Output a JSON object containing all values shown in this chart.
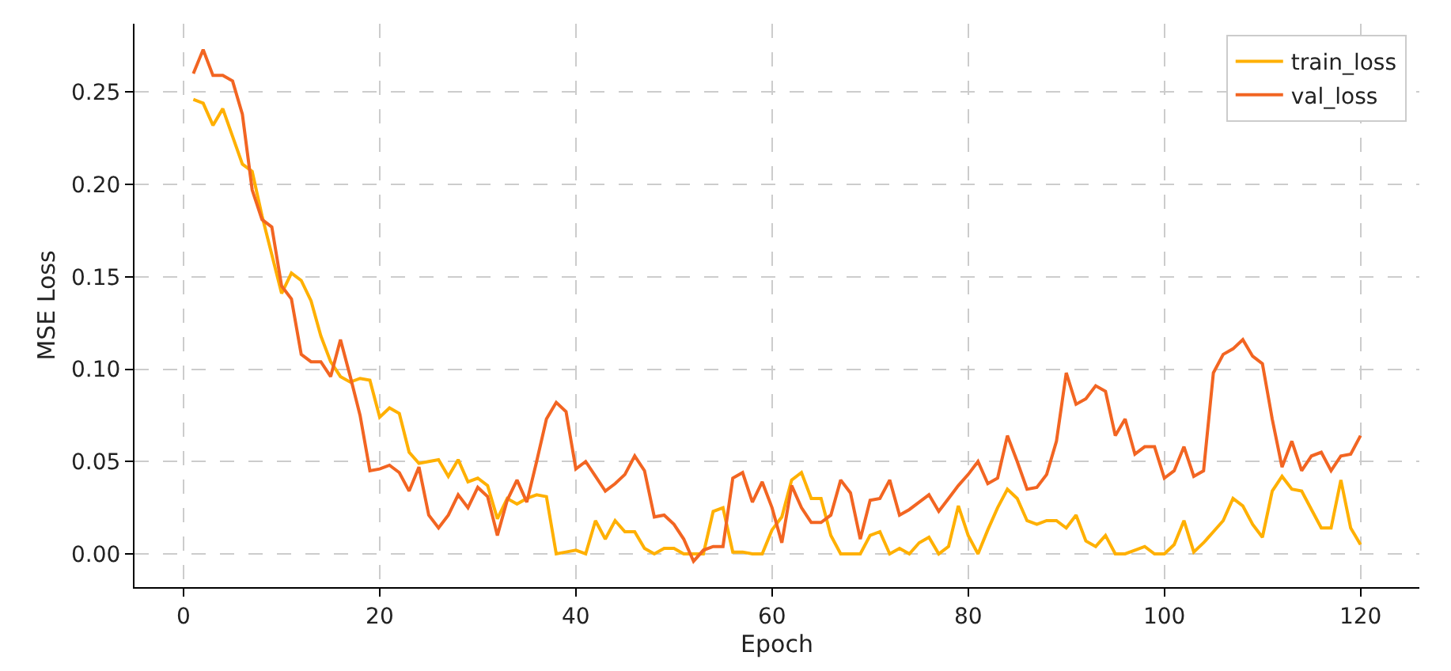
{
  "chart_data": {
    "type": "line",
    "xlabel": "Epoch",
    "ylabel": "MSE Loss",
    "x": [
      1,
      2,
      3,
      4,
      5,
      6,
      7,
      8,
      9,
      10,
      11,
      12,
      13,
      14,
      15,
      16,
      17,
      18,
      19,
      20,
      21,
      22,
      23,
      24,
      25,
      26,
      27,
      28,
      29,
      30,
      31,
      32,
      33,
      34,
      35,
      36,
      37,
      38,
      39,
      40,
      41,
      42,
      43,
      44,
      45,
      46,
      47,
      48,
      49,
      50,
      51,
      52,
      53,
      54,
      55,
      56,
      57,
      58,
      59,
      60,
      61,
      62,
      63,
      64,
      65,
      66,
      67,
      68,
      69,
      70,
      71,
      72,
      73,
      74,
      75,
      76,
      77,
      78,
      79,
      80,
      81,
      82,
      83,
      84,
      85,
      86,
      87,
      88,
      89,
      90,
      91,
      92,
      93,
      94,
      95,
      96,
      97,
      98,
      99,
      100,
      101,
      102,
      103,
      104,
      105,
      106,
      107,
      108,
      109,
      110,
      111,
      112,
      113,
      114,
      115,
      116,
      117,
      118,
      119,
      120
    ],
    "series": [
      {
        "name": "train_loss",
        "color": "#ffb000",
        "values": [
          0.246,
          0.244,
          0.232,
          0.241,
          0.226,
          0.211,
          0.207,
          0.183,
          0.162,
          0.141,
          0.152,
          0.148,
          0.137,
          0.118,
          0.104,
          0.096,
          0.093,
          0.095,
          0.094,
          0.074,
          0.079,
          0.076,
          0.055,
          0.049,
          0.05,
          0.051,
          0.042,
          0.051,
          0.039,
          0.041,
          0.037,
          0.019,
          0.03,
          0.027,
          0.03,
          0.032,
          0.031,
          0.0,
          0.001,
          0.002,
          0.0,
          0.018,
          0.008,
          0.018,
          0.012,
          0.012,
          0.003,
          0.0,
          0.003,
          0.003,
          0.0,
          0.0,
          0.0,
          0.023,
          0.025,
          0.001,
          0.001,
          0.0,
          0.0,
          0.013,
          0.02,
          0.04,
          0.044,
          0.03,
          0.03,
          0.01,
          0.0,
          0.0,
          0.0,
          0.01,
          0.012,
          0.0,
          0.003,
          0.0,
          0.006,
          0.009,
          0.0,
          0.004,
          0.026,
          0.01,
          0.0,
          0.013,
          0.025,
          0.035,
          0.03,
          0.018,
          0.016,
          0.018,
          0.018,
          0.014,
          0.021,
          0.007,
          0.004,
          0.01,
          0.0,
          0.0,
          0.002,
          0.004,
          0.0,
          0.0,
          0.005,
          0.018,
          0.001,
          0.006,
          0.012,
          0.018,
          0.03,
          0.026,
          0.016,
          0.009,
          0.034,
          0.042,
          0.035,
          0.034,
          0.024,
          0.014,
          0.014,
          0.04,
          0.014,
          0.005
        ]
      },
      {
        "name": "val_loss",
        "color": "#f26522",
        "values": [
          0.26,
          0.273,
          0.259,
          0.259,
          0.256,
          0.238,
          0.197,
          0.181,
          0.177,
          0.145,
          0.138,
          0.108,
          0.104,
          0.104,
          0.096,
          0.116,
          0.096,
          0.075,
          0.045,
          0.046,
          0.048,
          0.044,
          0.034,
          0.047,
          0.021,
          0.014,
          0.021,
          0.032,
          0.025,
          0.036,
          0.031,
          0.01,
          0.029,
          0.04,
          0.028,
          0.05,
          0.073,
          0.082,
          0.077,
          0.046,
          0.05,
          0.042,
          0.034,
          0.038,
          0.043,
          0.053,
          0.045,
          0.02,
          0.021,
          0.016,
          0.008,
          -0.004,
          0.002,
          0.004,
          0.004,
          0.041,
          0.044,
          0.028,
          0.039,
          0.025,
          0.006,
          0.037,
          0.025,
          0.017,
          0.017,
          0.021,
          0.04,
          0.033,
          0.008,
          0.029,
          0.03,
          0.04,
          0.021,
          0.024,
          0.028,
          0.032,
          0.023,
          0.03,
          0.037,
          0.043,
          0.05,
          0.038,
          0.041,
          0.064,
          0.05,
          0.035,
          0.036,
          0.043,
          0.061,
          0.098,
          0.081,
          0.084,
          0.091,
          0.088,
          0.064,
          0.073,
          0.054,
          0.058,
          0.058,
          0.041,
          0.045,
          0.058,
          0.042,
          0.045,
          0.098,
          0.108,
          0.111,
          0.116,
          0.107,
          0.103,
          0.073,
          0.047,
          0.061,
          0.045,
          0.053,
          0.055,
          0.045,
          0.053,
          0.054,
          0.064
        ]
      }
    ],
    "xlim": [
      -5,
      126
    ],
    "xticks": [
      0,
      20,
      40,
      60,
      80,
      100,
      120
    ],
    "ylim": [
      -0.018,
      0.287
    ],
    "yticks": [
      {
        "value": 0,
        "label": "0.00"
      },
      {
        "value": 0.05,
        "label": "0.05"
      },
      {
        "value": 0.1,
        "label": "0.10"
      },
      {
        "value": 0.15,
        "label": "0.15"
      },
      {
        "value": 0.2,
        "label": "0.20"
      },
      {
        "value": 0.25,
        "label": "0.25"
      }
    ],
    "grid": true,
    "legend": "top right",
    "line_style": "solid",
    "marker": "none"
  }
}
